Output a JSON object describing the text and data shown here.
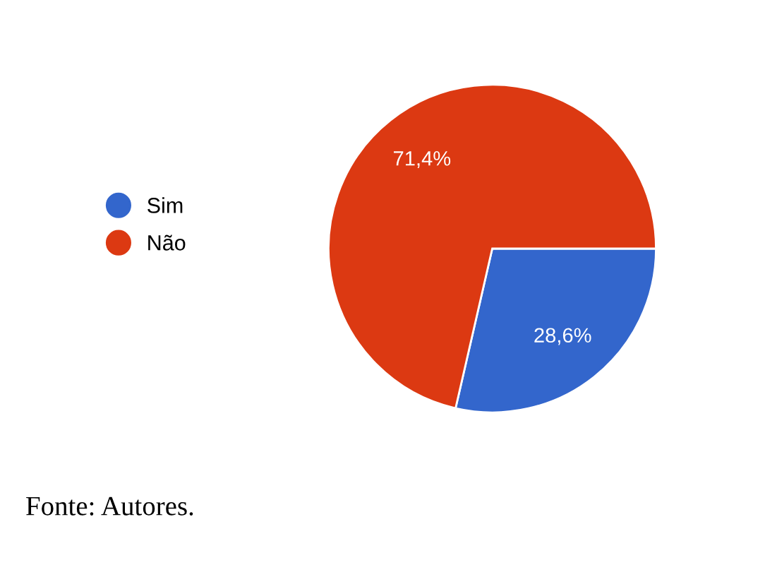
{
  "chart_data": {
    "type": "pie",
    "categories": [
      "Sim",
      "Não"
    ],
    "values": [
      28.6,
      71.4
    ],
    "colors": [
      "#3366cc",
      "#dc3912"
    ],
    "value_labels": [
      "28,6%",
      "71,4%"
    ],
    "legend": "left",
    "annotations": [
      "Fonte: Autores."
    ]
  }
}
